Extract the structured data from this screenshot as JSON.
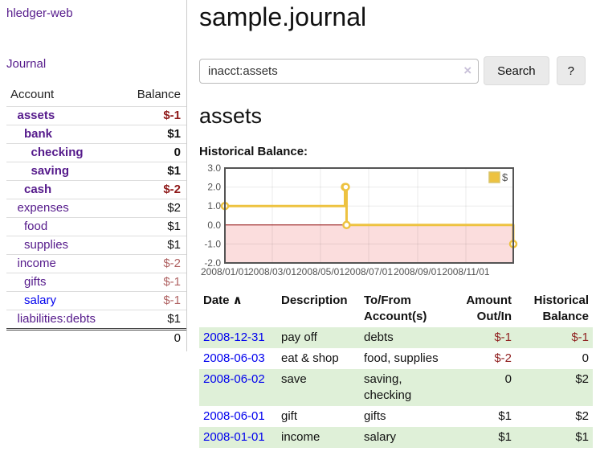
{
  "app": {
    "brand": "hledger-web",
    "nav_journal": "Journal"
  },
  "page": {
    "title": "sample.journal"
  },
  "search": {
    "value": "inacct:assets",
    "clear_icon": "×",
    "search_button": "Search",
    "help_button": "?"
  },
  "account_view": {
    "heading": "assets",
    "chart_heading": "Historical Balance:"
  },
  "sidebar_accounts": {
    "columns": {
      "account": "Account",
      "balance": "Balance"
    },
    "rows": [
      {
        "name": "assets",
        "depth": 1,
        "balance": "$-1",
        "bold": true
      },
      {
        "name": "bank",
        "depth": 2,
        "balance": "$1",
        "bold": true
      },
      {
        "name": "checking",
        "depth": 3,
        "balance": "0",
        "bold": true
      },
      {
        "name": "saving",
        "depth": 3,
        "balance": "$1",
        "bold": true
      },
      {
        "name": "cash",
        "depth": 2,
        "balance": "$-2",
        "bold": true
      },
      {
        "name": "expenses",
        "depth": 1,
        "balance": "$2"
      },
      {
        "name": "food",
        "depth": 2,
        "balance": "$1"
      },
      {
        "name": "supplies",
        "depth": 2,
        "balance": "$1"
      },
      {
        "name": "income",
        "depth": 1,
        "balance": "$-2"
      },
      {
        "name": "gifts",
        "depth": 2,
        "balance": "$-1"
      },
      {
        "name": "salary",
        "depth": 2,
        "balance": "$-1",
        "link_color": "#0000ee"
      },
      {
        "name": "liabilities:debts",
        "depth": 1,
        "balance": "$1"
      }
    ],
    "total": "0"
  },
  "chart_data": {
    "type": "line",
    "step": true,
    "title": "Historical Balance:",
    "legend": {
      "label": "$",
      "position": "top-right"
    },
    "x": [
      "2008-01-01",
      "2008-06-01",
      "2008-06-02",
      "2008-06-03",
      "2008-12-31"
    ],
    "series": [
      {
        "name": "$",
        "color": "#edc240",
        "values": [
          1,
          2,
          2,
          0,
          -1
        ]
      }
    ],
    "ylim": [
      -2,
      3
    ],
    "yticks": [
      "3.0",
      "2.0",
      "1.0",
      "0.0",
      "-1.0",
      "-2.0"
    ],
    "xticks": [
      "2008/01/01",
      "2008/03/01",
      "2008/05/01",
      "2008/07/01",
      "2008/09/01",
      "2008/11/01"
    ],
    "grid": true,
    "plot_border_color": "#545454",
    "negative_region_color": "#fbdddd",
    "zero_line_color": "#8b0000"
  },
  "register": {
    "columns": [
      {
        "label": "Date",
        "sort_icon": "∧"
      },
      {
        "label": "Description"
      },
      {
        "label": "To/From Account(s)"
      },
      {
        "label": "Amount Out/In",
        "align": "right"
      },
      {
        "label": "Historical Balance",
        "align": "right"
      }
    ],
    "rows": [
      {
        "date": "2008-12-31",
        "description": "pay off",
        "accounts": "debts",
        "amount": "$-1",
        "balance": "$-1"
      },
      {
        "date": "2008-06-03",
        "description": "eat & shop",
        "accounts": "food, supplies",
        "amount": "$-2",
        "balance": "0"
      },
      {
        "date": "2008-06-02",
        "description": "save",
        "accounts": "saving, checking",
        "amount": "0",
        "balance": "$2"
      },
      {
        "date": "2008-06-01",
        "description": "gift",
        "accounts": "gifts",
        "amount": "$1",
        "balance": "$2"
      },
      {
        "date": "2008-01-01",
        "description": "income",
        "accounts": "salary",
        "amount": "$1",
        "balance": "$1"
      }
    ]
  },
  "colors": {
    "link_purple": "#551a8b",
    "link_blue": "#0000ee",
    "negative_bold": "#8f1a1a",
    "negative_muted": "#b06363",
    "negative_table": "#8f1f1f",
    "row_stripe_green": "#dff0d8",
    "chart_line_yellow": "#edc240",
    "chart_negative_pink": "#fbdddd",
    "chart_zero_red": "#8b0000"
  }
}
